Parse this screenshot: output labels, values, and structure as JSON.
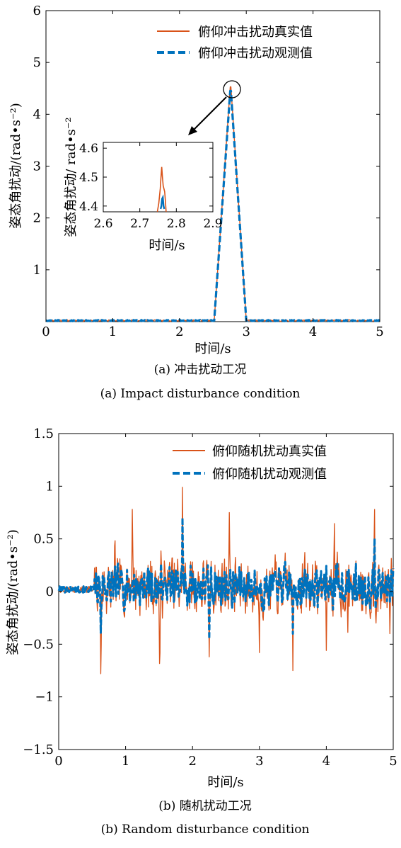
{
  "chart_data": [
    {
      "type": "line",
      "xlabel": "时间/s",
      "ylabel": "姿态角扰动/(rad•s⁻²)",
      "xlim": [
        0,
        5
      ],
      "ylim": [
        0,
        6
      ],
      "xticks": [
        "0",
        "1",
        "2",
        "3",
        "4",
        "5"
      ],
      "yticks": [
        "1",
        "2",
        "3",
        "4",
        "5",
        "6"
      ],
      "grid": false,
      "legend_position": "top-right",
      "caption_cn": "(a) 冲击扰动工况",
      "caption_en": "(a) Impact disturbance condition",
      "series": [
        {
          "name": "俯仰冲击扰动真实值",
          "color": "#d95319",
          "style": "solid",
          "x": [
            0,
            2.52,
            2.76,
            2.77,
            3.0,
            5
          ],
          "y": [
            0.02,
            0.02,
            4.53,
            4.53,
            0.02,
            0.02
          ],
          "noise": 0.015
        },
        {
          "name": "俯仰冲击扰动观测值",
          "color": "#0072bd",
          "style": "dashed",
          "x": [
            0,
            2.52,
            2.76,
            2.77,
            3.0,
            5
          ],
          "y": [
            0.02,
            0.02,
            4.45,
            4.45,
            0.02,
            0.02
          ],
          "noise": 0.01
        }
      ],
      "annotation": {
        "type": "circle-zoom",
        "target_x": 2.77,
        "target_y": 4.45
      },
      "inset": {
        "xlabel": "时间/s",
        "ylabel": "姿态角扰动/ rad•s⁻²",
        "xlim": [
          2.6,
          2.9
        ],
        "ylim": [
          4.38,
          4.62
        ],
        "xticks": [
          "2.6",
          "2.7",
          "2.8",
          "2.9"
        ],
        "yticks": [
          "4.4",
          "4.5",
          "4.6"
        ],
        "series": [
          {
            "name": "真实值",
            "color": "#d95319",
            "x": [
              2.748,
              2.752,
              2.756,
              2.758,
              2.76,
              2.762,
              2.764,
              2.766,
              2.768,
              2.77,
              2.772
            ],
            "y": [
              4.38,
              4.41,
              4.46,
              4.5,
              4.535,
              4.5,
              4.47,
              4.46,
              4.45,
              4.42,
              4.38
            ]
          },
          {
            "name": "观测值",
            "color": "#0072bd",
            "x": [
              2.757,
              2.759,
              2.761,
              2.763,
              2.765,
              2.767
            ],
            "y": [
              4.39,
              4.4,
              4.425,
              4.43,
              4.4,
              4.39
            ]
          }
        ]
      }
    },
    {
      "type": "line",
      "xlabel": "时间/s",
      "ylabel": "姿态角扰动/(rad•s⁻²)",
      "xlim": [
        0,
        5
      ],
      "ylim": [
        -1.5,
        1.5
      ],
      "xticks": [
        "0",
        "1",
        "2",
        "3",
        "4",
        "5"
      ],
      "yticks": [
        "−1.5",
        "−1",
        "−0.5",
        "0",
        "0.5",
        "1",
        "1.5"
      ],
      "grid": false,
      "legend_position": "top-right",
      "caption_cn": "(b) 随机扰动工况",
      "caption_en": "(b) Random disturbance condition",
      "series": [
        {
          "name": "俯仰随机扰动真实值",
          "color": "#d95319",
          "style": "solid",
          "onset": 0.53,
          "baseline": 0.02,
          "amplitude": 0.33,
          "seed": 7,
          "peaks": [
            [
              0.63,
              -0.9
            ],
            [
              0.84,
              0.55
            ],
            [
              1.1,
              0.78
            ],
            [
              1.51,
              -0.9
            ],
            [
              1.85,
              0.99
            ],
            [
              2.25,
              -0.62
            ],
            [
              2.55,
              0.75
            ],
            [
              3.0,
              -0.58
            ],
            [
              3.5,
              -0.75
            ],
            [
              4.0,
              -0.56
            ],
            [
              4.12,
              0.72
            ],
            [
              4.32,
              -0.45
            ],
            [
              4.72,
              0.9
            ],
            [
              4.95,
              -0.4
            ]
          ]
        },
        {
          "name": "俯仰随机扰动观测值",
          "color": "#0072bd",
          "style": "dashed",
          "onset": 0.53,
          "baseline": 0.02,
          "amplitude": 0.22,
          "seed": 7,
          "peaks": [
            [
              0.63,
              -0.45
            ],
            [
              1.85,
              0.7
            ],
            [
              2.25,
              -0.45
            ],
            [
              3.5,
              -0.4
            ],
            [
              4.72,
              0.58
            ]
          ]
        }
      ]
    }
  ]
}
